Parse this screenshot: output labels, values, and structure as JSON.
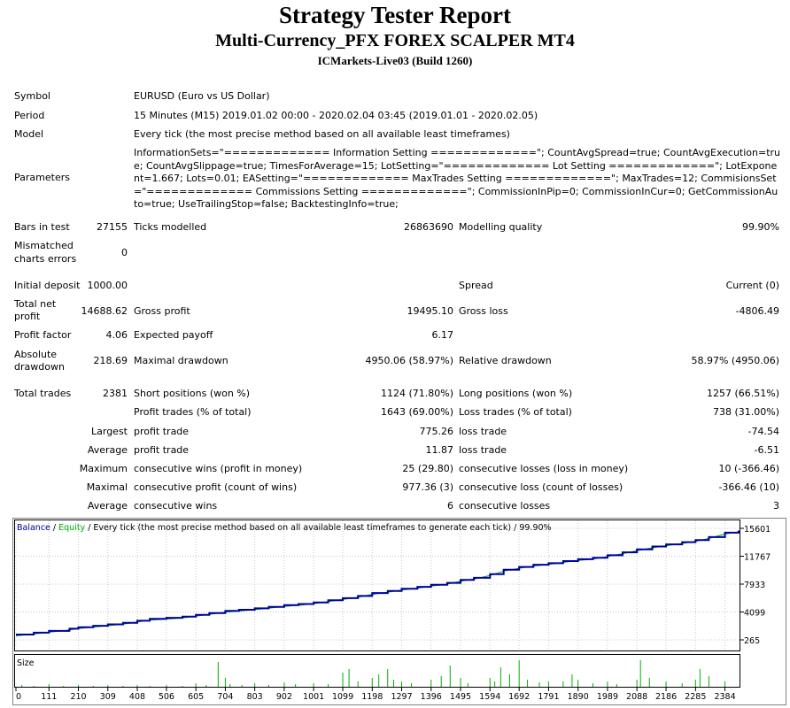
{
  "header": {
    "title": "Strategy Tester Report",
    "subtitle": "Multi-Currency_PFX FOREX SCALPER MT4",
    "server": "ICMarkets-Live03 (Build 1260)"
  },
  "info": {
    "symbol_label": "Symbol",
    "symbol_value": "EURUSD (Euro vs US Dollar)",
    "period_label": "Period",
    "period_value": "15 Minutes (M15) 2019.01.02 00:00 - 2020.02.04 03:45 (2019.01.01 - 2020.02.05)",
    "model_label": "Model",
    "model_value": "Every tick (the most precise method based on all available least timeframes)",
    "parameters_label": "Parameters",
    "parameters_value": "InformationSets=\"============= Information Setting =============\"; CountAvgSpread=true; CountAvgExecution=true; CountAvgSlippage=true; TimesForAverage=15; LotSetting=\"============= Lot Setting =============\"; LotExponent=1.667; Lots=0.01; EASetting=\"============= MaxTrades Setting =============\"; MaxTrades=12; CommisionsSet=\"============= Commissions Setting =============\"; CommissionInPip=0; CommissionInCur=0; GetCommissionAuto=true; UseTrailingStop=false; BacktestingInfo=true;"
  },
  "stats": {
    "bars_label": "Bars in test",
    "bars_value": "27155",
    "ticks_label": "Ticks modelled",
    "ticks_value": "26863690",
    "quality_label": "Modelling quality",
    "quality_value": "99.90%",
    "mismatch_label_1": "Mismatched",
    "mismatch_label_2": "charts errors",
    "mismatch_value": "0",
    "deposit_label": "Initial deposit",
    "deposit_value": "1000.00",
    "spread_label": "Spread",
    "spread_value": "Current (0)",
    "net_label_1": "Total net",
    "net_label_2": "profit",
    "net_value": "14688.62",
    "gross_profit_label": "Gross profit",
    "gross_profit_value": "19495.10",
    "gross_loss_label": "Gross loss",
    "gross_loss_value": "-4806.49",
    "pf_label": "Profit factor",
    "pf_value": "4.06",
    "payoff_label": "Expected payoff",
    "payoff_value": "6.17",
    "abs_dd_label_1": "Absolute",
    "abs_dd_label_2": "drawdown",
    "abs_dd_value": "218.69",
    "max_dd_label": "Maximal drawdown",
    "max_dd_value": "4950.06 (58.97%)",
    "rel_dd_label": "Relative drawdown",
    "rel_dd_value": "58.97% (4950.06)",
    "trades_label": "Total trades",
    "trades_value": "2381",
    "short_label": "Short positions (won %)",
    "short_value": "1124 (71.80%)",
    "long_label": "Long positions (won %)",
    "long_value": "1257 (66.51%)",
    "ptrades_label": "Profit trades (% of total)",
    "ptrades_value": "1643 (69.00%)",
    "ltrades_label": "Loss trades (% of total)",
    "ltrades_value": "738 (31.00%)",
    "largest_label": "Largest",
    "largest_profit_label": "profit trade",
    "largest_profit_value": "775.26",
    "largest_loss_label": "loss trade",
    "largest_loss_value": "-74.54",
    "average_label": "Average",
    "average_profit_label": "profit trade",
    "average_profit_value": "11.87",
    "average_loss_label": "loss trade",
    "average_loss_value": "-6.51",
    "maximum_label": "Maximum",
    "max_wins_label": "consecutive wins (profit in money)",
    "max_wins_value": "25 (29.80)",
    "max_losses_label": "consecutive losses (loss in money)",
    "max_losses_value": "10 (-366.46)",
    "maximal_label": "Maximal",
    "maximal_profit_label": "consecutive profit (count of wins)",
    "maximal_profit_value": "977.36 (3)",
    "maximal_loss_label": "consecutive loss (count of losses)",
    "maximal_loss_value": "-366.46 (10)",
    "avg_cons_label": "Average",
    "avg_cons_wins_label": "consecutive wins",
    "avg_cons_wins_value": "6",
    "avg_cons_losses_label": "consecutive losses",
    "avg_cons_losses_value": "3"
  },
  "chart_data": {
    "type": "line",
    "legend": {
      "balance": "Balance",
      "sep1": " / ",
      "equity": "Equity",
      "rest": " / Every tick (the most precise method based on all available least timeframes to generate each tick) / 99.90%"
    },
    "colors": {
      "balance": "#0000a0",
      "equity": "#00b000",
      "size": "#00b000"
    },
    "y_ticks": [
      15601,
      11767,
      7933,
      4099,
      265
    ],
    "x_ticks": [
      0,
      111,
      210,
      309,
      408,
      506,
      605,
      704,
      803,
      902,
      1001,
      1099,
      1198,
      1297,
      1396,
      1495,
      1594,
      1692,
      1791,
      1890,
      1989,
      2088,
      2186,
      2285,
      2384
    ],
    "ylim": [
      265,
      15601
    ],
    "xlim": [
      0,
      2430
    ],
    "size_label": "Size",
    "balance": [
      [
        0,
        1000
      ],
      [
        60,
        1250
      ],
      [
        111,
        1500
      ],
      [
        180,
        1800
      ],
      [
        210,
        2000
      ],
      [
        260,
        2200
      ],
      [
        309,
        2400
      ],
      [
        360,
        2600
      ],
      [
        408,
        2900
      ],
      [
        450,
        3150
      ],
      [
        506,
        3300
      ],
      [
        560,
        3450
      ],
      [
        605,
        3700
      ],
      [
        650,
        3950
      ],
      [
        704,
        4250
      ],
      [
        750,
        4400
      ],
      [
        803,
        4600
      ],
      [
        850,
        4800
      ],
      [
        902,
        5050
      ],
      [
        950,
        5200
      ],
      [
        1001,
        5400
      ],
      [
        1050,
        5700
      ],
      [
        1099,
        6000
      ],
      [
        1150,
        6300
      ],
      [
        1198,
        6700
      ],
      [
        1250,
        7000
      ],
      [
        1297,
        7300
      ],
      [
        1350,
        7550
      ],
      [
        1396,
        7850
      ],
      [
        1450,
        8100
      ],
      [
        1495,
        8500
      ],
      [
        1540,
        8800
      ],
      [
        1594,
        9300
      ],
      [
        1640,
        9900
      ],
      [
        1692,
        10300
      ],
      [
        1740,
        10600
      ],
      [
        1791,
        10800
      ],
      [
        1840,
        11100
      ],
      [
        1890,
        11350
      ],
      [
        1940,
        11550
      ],
      [
        1989,
        11900
      ],
      [
        2040,
        12300
      ],
      [
        2088,
        12700
      ],
      [
        2140,
        13100
      ],
      [
        2186,
        13400
      ],
      [
        2240,
        13700
      ],
      [
        2285,
        14000
      ],
      [
        2330,
        14400
      ],
      [
        2384,
        15000
      ],
      [
        2430,
        15300
      ]
    ],
    "size_bars": [
      [
        20,
        2
      ],
      [
        60,
        1
      ],
      [
        111,
        3
      ],
      [
        160,
        1
      ],
      [
        210,
        2
      ],
      [
        260,
        1
      ],
      [
        309,
        2
      ],
      [
        360,
        1
      ],
      [
        408,
        2
      ],
      [
        450,
        1
      ],
      [
        506,
        2
      ],
      [
        560,
        1
      ],
      [
        605,
        4
      ],
      [
        640,
        2
      ],
      [
        680,
        28
      ],
      [
        704,
        10
      ],
      [
        720,
        3
      ],
      [
        760,
        2
      ],
      [
        803,
        4
      ],
      [
        850,
        2
      ],
      [
        902,
        5
      ],
      [
        940,
        3
      ],
      [
        1001,
        4
      ],
      [
        1050,
        3
      ],
      [
        1099,
        16
      ],
      [
        1120,
        20
      ],
      [
        1150,
        6
      ],
      [
        1198,
        10
      ],
      [
        1220,
        14
      ],
      [
        1250,
        20
      ],
      [
        1270,
        8
      ],
      [
        1297,
        6
      ],
      [
        1330,
        4
      ],
      [
        1396,
        8
      ],
      [
        1430,
        12
      ],
      [
        1460,
        24
      ],
      [
        1495,
        10
      ],
      [
        1520,
        4
      ],
      [
        1594,
        10
      ],
      [
        1610,
        6
      ],
      [
        1630,
        22
      ],
      [
        1660,
        14
      ],
      [
        1692,
        30
      ],
      [
        1720,
        8
      ],
      [
        1760,
        5
      ],
      [
        1791,
        6
      ],
      [
        1840,
        6
      ],
      [
        1870,
        14
      ],
      [
        1890,
        8
      ],
      [
        1940,
        4
      ],
      [
        1989,
        6
      ],
      [
        2020,
        3
      ],
      [
        2088,
        8
      ],
      [
        2100,
        30
      ],
      [
        2130,
        10
      ],
      [
        2186,
        6
      ],
      [
        2240,
        4
      ],
      [
        2285,
        8
      ],
      [
        2300,
        20
      ],
      [
        2330,
        12
      ],
      [
        2384,
        6
      ]
    ]
  }
}
